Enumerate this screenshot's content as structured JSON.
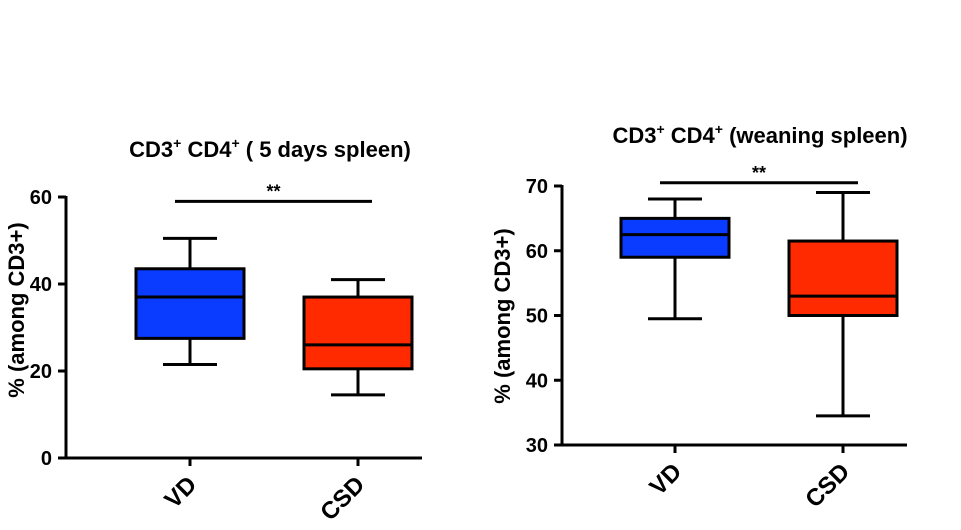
{
  "chart_data": [
    {
      "type": "boxplot",
      "title_main": "CD3",
      "title_sup1": "+",
      "title_mid": " CD4",
      "title_sup2": "+",
      "title_tail": " ( 5 days spleen)",
      "ylabel": "% (among CD3+)",
      "ylim": [
        0,
        60
      ],
      "yticks": [
        0,
        20,
        40,
        60
      ],
      "categories": [
        "VD",
        "CSD"
      ],
      "series": [
        {
          "name": "VD",
          "color": "#0a3cff",
          "min": 21.5,
          "q1": 27.5,
          "median": 37,
          "q3": 43.5,
          "max": 50.5
        },
        {
          "name": "CSD",
          "color": "#ff2a00",
          "min": 14.5,
          "q1": 20.5,
          "median": 26,
          "q3": 37,
          "max": 41
        }
      ],
      "significance": {
        "label": "**",
        "y": 59
      }
    },
    {
      "type": "boxplot",
      "title_main": "CD3",
      "title_sup1": "+",
      "title_mid": " CD4",
      "title_sup2": "+",
      "title_tail": " (weaning spleen)",
      "ylabel": "% (among CD3+)",
      "ylim": [
        30,
        70
      ],
      "yticks": [
        30,
        40,
        50,
        60,
        70
      ],
      "categories": [
        "VD",
        "CSD"
      ],
      "series": [
        {
          "name": "VD",
          "color": "#0a3cff",
          "min": 49.5,
          "q1": 59,
          "median": 62.5,
          "q3": 65,
          "max": 68
        },
        {
          "name": "CSD",
          "color": "#ff2a00",
          "min": 34.5,
          "q1": 50,
          "median": 53,
          "q3": 61.5,
          "max": 69
        }
      ],
      "significance": {
        "label": "**",
        "y": 70.5
      }
    }
  ]
}
